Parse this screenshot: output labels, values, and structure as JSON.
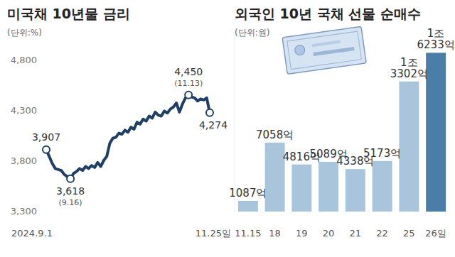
{
  "chart_data": [
    {
      "type": "line",
      "title": "미국채 10년물 금리",
      "subtitle": "(단위:%)",
      "categories": [
        "2024.9.1",
        null,
        null,
        null,
        null,
        null,
        null,
        null,
        null,
        null,
        null,
        null,
        null,
        null,
        null,
        null,
        null,
        null,
        null,
        null,
        null,
        null,
        null,
        null,
        null,
        null,
        null,
        null,
        null,
        null,
        null,
        null,
        null,
        null,
        null,
        null,
        null,
        null,
        null,
        null,
        null,
        null,
        null,
        null,
        null,
        null,
        null,
        null,
        null,
        null,
        null,
        null,
        null,
        null,
        "11.25일"
      ],
      "values": [
        3.907,
        3.84,
        3.77,
        3.72,
        3.71,
        3.7,
        3.66,
        3.64,
        3.618,
        3.67,
        3.69,
        3.72,
        3.7,
        3.74,
        3.72,
        3.75,
        3.73,
        3.78,
        3.74,
        3.8,
        3.84,
        3.97,
        4.02,
        4.03,
        4.07,
        4.06,
        4.1,
        4.08,
        4.13,
        4.11,
        4.18,
        4.16,
        4.21,
        4.19,
        4.24,
        4.22,
        4.28,
        4.25,
        4.24,
        4.29,
        4.27,
        4.31,
        4.33,
        4.37,
        4.28,
        4.36,
        4.42,
        4.45,
        4.43,
        4.42,
        4.39,
        4.41,
        4.4,
        4.42,
        4.274
      ],
      "color": "#1f3f66",
      "ylim": [
        3.3,
        4.8
      ],
      "yticks": [
        {
          "value": 3.3,
          "label": "3,300"
        },
        {
          "value": 3.8,
          "label": "3,800"
        },
        {
          "value": 4.3,
          "label": "4,300"
        },
        {
          "value": 4.8,
          "label": "4,800"
        }
      ],
      "grid": false,
      "annotations": [
        {
          "value": 3.907,
          "label": "3,907"
        },
        {
          "value": 3.618,
          "label": "3,618",
          "note": "(9.16)"
        },
        {
          "value": 4.45,
          "label": "4,450",
          "note": "(11.13)"
        },
        {
          "value": 4.274,
          "label": "4,274"
        }
      ]
    },
    {
      "type": "bar",
      "title": "외국인 10년 국채 선물 순매수",
      "subtitle": "(단위:원)",
      "categories": [
        "11.15",
        "18",
        "19",
        "20",
        "21",
        "22",
        "25",
        "26일"
      ],
      "values": [
        1087,
        7058,
        4816,
        5089,
        4338,
        5173,
        13302,
        16233
      ],
      "value_labels": [
        "1087억",
        "7058억",
        "4816억",
        "5089억",
        "4338억",
        "5173억",
        "1조 3302억",
        "1조 6233억"
      ],
      "colors": [
        "#a8c5dc",
        "#a8c5dc",
        "#a8c5dc",
        "#a8c5dc",
        "#a8c5dc",
        "#a8c5dc",
        "#a8c5dc",
        "#4a7ea8"
      ],
      "ylim": [
        0,
        18000
      ],
      "data_labels": true,
      "tick_labels": false
    }
  ]
}
